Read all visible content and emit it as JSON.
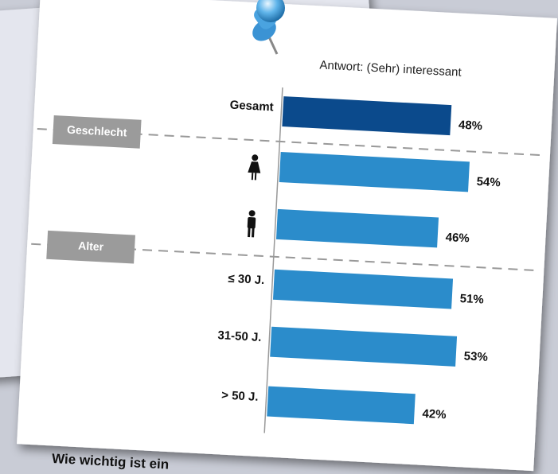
{
  "chart_data": {
    "type": "bar",
    "orientation": "horizontal",
    "subtitle": "Antwort: (Sehr) interessant",
    "categories": [
      "Gesamt",
      null,
      null,
      "≤ 30 J.",
      "31-50 J.",
      "> 50 J."
    ],
    "values": [
      48,
      54,
      46,
      51,
      53,
      42
    ],
    "value_labels": [
      "48%",
      "54%",
      "46%",
      "51%",
      "53%",
      "42%"
    ],
    "colors": [
      "#0b4a8c",
      "#2b8ccb",
      "#2b8ccb",
      "#2b8ccb",
      "#2b8ccb",
      "#2b8ccb"
    ],
    "groups": [
      "Geschlecht",
      "Alter"
    ],
    "caption": "Wie wichtig ist ein"
  }
}
